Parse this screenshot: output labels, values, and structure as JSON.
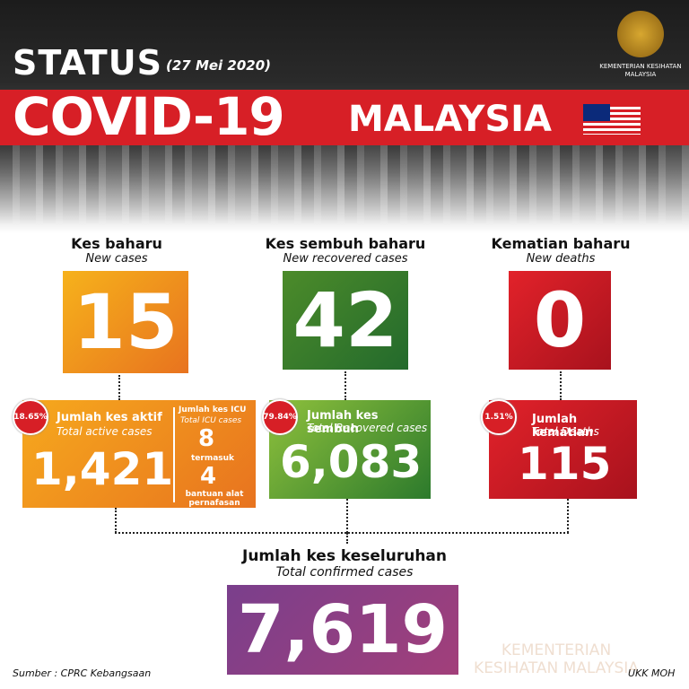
{
  "header": {
    "status": "STATUS",
    "date": "(27 Mei 2020)",
    "title": "COVID-19",
    "country": "MALAYSIA",
    "ministry": "KEMENTERIAN KESIHATAN MALAYSIA"
  },
  "new_cases": {
    "label_ms": "Kes baharu",
    "label_en": "New cases",
    "value": "15"
  },
  "new_recovered": {
    "label_ms": "Kes sembuh baharu",
    "label_en": "New recovered cases",
    "value": "42"
  },
  "new_deaths": {
    "label_ms": "Kematian baharu",
    "label_en": "New deaths",
    "value": "0"
  },
  "active": {
    "percent": "18.65%",
    "label_ms": "Jumlah kes aktif",
    "label_en": "Total active cases",
    "value": "1,421"
  },
  "icu": {
    "label_ms": "Jumlah kes ICU",
    "label_en": "Total ICU cases",
    "value": "8",
    "including": "termasuk",
    "ventilator_value": "4",
    "ventilator_label": "bantuan alat pernafasan"
  },
  "recovered": {
    "percent": "79.84%",
    "label_ms": "Jumlah kes sembuh",
    "label_en": "Total Recovered cases",
    "value": "6,083"
  },
  "deaths": {
    "percent": "1.51%",
    "label_ms": "Jumlah kematian",
    "label_en": "Total Deaths",
    "value": "115"
  },
  "total": {
    "label_ms": "Jumlah kes keseluruhan",
    "label_en": "Total confirmed cases",
    "value": "7,619"
  },
  "footer": {
    "source": "Sumber : CPRC Kebangsaan",
    "credit": "UKK MOH"
  }
}
